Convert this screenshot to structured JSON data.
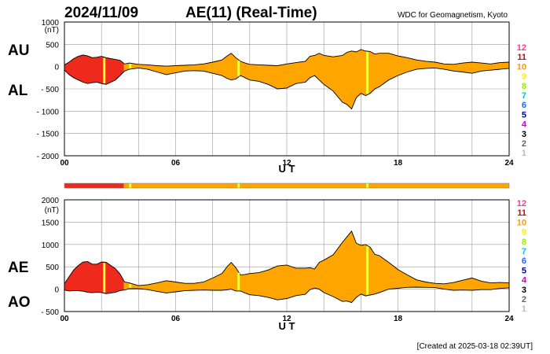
{
  "header": {
    "date": "2024/11/09",
    "title": "AE(11) (Real-Time)",
    "source": "WDC for Geomagnetism, Kyoto",
    "footer": "[Created at 2025-03-18 02:39UT]"
  },
  "level_legend": {
    "levels": [
      "12",
      "11",
      "10",
      "9",
      "8",
      "7",
      "6",
      "5",
      "4",
      "3",
      "2",
      "1"
    ],
    "colors": [
      "#ff3399",
      "#dd0000",
      "#ff9900",
      "#ffee00",
      "#99ee00",
      "#00cccc",
      "#2266ff",
      "#0000aa",
      "#cc00cc",
      "#000000",
      "#666666",
      "#bbbbbb"
    ]
  },
  "colors": {
    "fill_main": "#ffa500",
    "fill_high": "#ee2a1c",
    "highlight": "#ffff33",
    "grid": "#999999",
    "axis": "#000000"
  },
  "chart_data": [
    {
      "type": "area",
      "name": "AU/AL",
      "labels": {
        "upper": "AU",
        "lower": "AL"
      },
      "xlabel": "U T",
      "ylabel_unit": "(nT)",
      "xlim": [
        0,
        24
      ],
      "ylim": [
        -2000,
        1000
      ],
      "xticks": [
        0,
        6,
        12,
        18,
        24
      ],
      "xtick_labels": [
        "00",
        "06",
        "12",
        "18",
        "24"
      ],
      "yticks": [
        1000,
        500,
        0,
        -500,
        -1000,
        -1500,
        -2000
      ],
      "ytick_labels": [
        "1000",
        "500",
        "0",
        "- 500",
        "- 1000",
        "- 1500",
        "- 2000"
      ],
      "grid": true,
      "x": [
        0,
        0.25,
        0.5,
        0.75,
        1.0,
        1.25,
        1.5,
        1.75,
        2.0,
        2.25,
        2.5,
        2.75,
        3.0,
        3.25,
        3.5,
        4.0,
        4.5,
        5.0,
        5.5,
        6.0,
        6.5,
        7.0,
        7.5,
        8.0,
        8.5,
        8.75,
        9.0,
        9.25,
        9.5,
        9.75,
        10.0,
        10.5,
        11.0,
        11.5,
        12.0,
        12.5,
        13.0,
        13.25,
        13.5,
        13.75,
        14.0,
        14.5,
        15.0,
        15.25,
        15.5,
        15.75,
        16.0,
        16.25,
        16.5,
        16.75,
        17.0,
        17.5,
        18.0,
        18.5,
        19.0,
        19.5,
        20.0,
        20.5,
        21.0,
        21.5,
        22.0,
        22.5,
        23.0,
        23.5,
        24.0
      ],
      "au": [
        40,
        100,
        180,
        230,
        260,
        240,
        200,
        210,
        230,
        200,
        180,
        160,
        140,
        60,
        80,
        50,
        40,
        20,
        10,
        20,
        30,
        40,
        60,
        100,
        150,
        230,
        300,
        200,
        120,
        80,
        50,
        40,
        30,
        20,
        60,
        90,
        120,
        230,
        250,
        300,
        250,
        220,
        250,
        320,
        350,
        330,
        380,
        350,
        340,
        280,
        300,
        300,
        240,
        200,
        150,
        120,
        100,
        60,
        50,
        80,
        100,
        80,
        60,
        90,
        100
      ],
      "al": [
        -80,
        -180,
        -250,
        -300,
        -350,
        -380,
        -360,
        -350,
        -380,
        -400,
        -350,
        -300,
        -200,
        -100,
        -60,
        -30,
        -60,
        -120,
        -180,
        -140,
        -100,
        -90,
        -100,
        -150,
        -200,
        -260,
        -300,
        -280,
        -200,
        -250,
        -300,
        -330,
        -400,
        -500,
        -480,
        -380,
        -350,
        -250,
        -200,
        -300,
        -400,
        -550,
        -800,
        -850,
        -950,
        -700,
        -600,
        -650,
        -600,
        -500,
        -450,
        -300,
        -200,
        -120,
        -60,
        -40,
        -30,
        -60,
        -100,
        -120,
        -150,
        -100,
        -80,
        -60,
        -40
      ],
      "high_activity_range": [
        0,
        3.2
      ],
      "highlight_times": [
        2.15,
        3.55,
        9.4,
        16.35
      ],
      "level_bar": {
        "segments": [
          {
            "start": 0,
            "end": 3.2,
            "level": "11"
          },
          {
            "start": 3.2,
            "end": 24,
            "level": "10"
          }
        ],
        "highlights": [
          3.55,
          9.4,
          16.35
        ]
      }
    },
    {
      "type": "area",
      "name": "AE/AO",
      "labels": {
        "upper": "AE",
        "lower": "AO"
      },
      "xlabel": "U T",
      "ylabel_unit": "(nT)",
      "xlim": [
        0,
        24
      ],
      "ylim": [
        -500,
        2000
      ],
      "xticks": [
        0,
        6,
        12,
        18,
        24
      ],
      "xtick_labels": [
        "00",
        "06",
        "12",
        "18",
        "24"
      ],
      "yticks": [
        2000,
        1500,
        1000,
        500,
        0,
        -500
      ],
      "ytick_labels": [
        "2000",
        "1500",
        "1000",
        "500",
        "0",
        "- 500"
      ],
      "grid": true,
      "x": [
        0,
        0.25,
        0.5,
        0.75,
        1.0,
        1.25,
        1.5,
        1.75,
        2.0,
        2.25,
        2.5,
        2.75,
        3.0,
        3.25,
        3.5,
        4.0,
        4.5,
        5.0,
        5.5,
        6.0,
        6.5,
        7.0,
        7.5,
        8.0,
        8.5,
        8.75,
        9.0,
        9.25,
        9.5,
        9.75,
        10.0,
        10.5,
        11.0,
        11.5,
        12.0,
        12.5,
        13.0,
        13.25,
        13.5,
        13.75,
        14.0,
        14.5,
        15.0,
        15.25,
        15.5,
        15.75,
        16.0,
        16.25,
        16.5,
        16.75,
        17.0,
        17.5,
        18.0,
        18.5,
        19.0,
        19.5,
        20.0,
        20.5,
        21.0,
        21.5,
        22.0,
        22.5,
        23.0,
        23.5,
        24.0
      ],
      "ae": [
        120,
        280,
        430,
        530,
        610,
        620,
        560,
        560,
        610,
        600,
        530,
        460,
        340,
        160,
        140,
        80,
        100,
        140,
        190,
        160,
        130,
        130,
        160,
        250,
        350,
        490,
        600,
        480,
        320,
        330,
        350,
        370,
        430,
        520,
        540,
        470,
        470,
        480,
        450,
        600,
        650,
        770,
        1050,
        1170,
        1300,
        1030,
        980,
        1000,
        940,
        780,
        750,
        600,
        440,
        320,
        210,
        160,
        130,
        120,
        150,
        200,
        250,
        180,
        140,
        150,
        140
      ],
      "ao": [
        -20,
        -40,
        -35,
        -35,
        -45,
        -70,
        -80,
        -70,
        -75,
        -100,
        -85,
        -70,
        -30,
        -20,
        10,
        10,
        -10,
        -50,
        -85,
        -60,
        -35,
        -25,
        -20,
        -25,
        -25,
        -15,
        0,
        -40,
        -40,
        -85,
        -125,
        -145,
        -185,
        -240,
        -210,
        -145,
        -115,
        -10,
        25,
        0,
        -75,
        -165,
        -275,
        -265,
        -300,
        -185,
        -110,
        -150,
        -130,
        -110,
        -75,
        0,
        20,
        40,
        45,
        40,
        35,
        0,
        -25,
        -20,
        -25,
        -10,
        -10,
        15,
        30
      ],
      "high_activity_range": [
        0,
        3.2
      ],
      "highlight_times": [
        2.15,
        3.55,
        9.4,
        16.35
      ]
    }
  ]
}
